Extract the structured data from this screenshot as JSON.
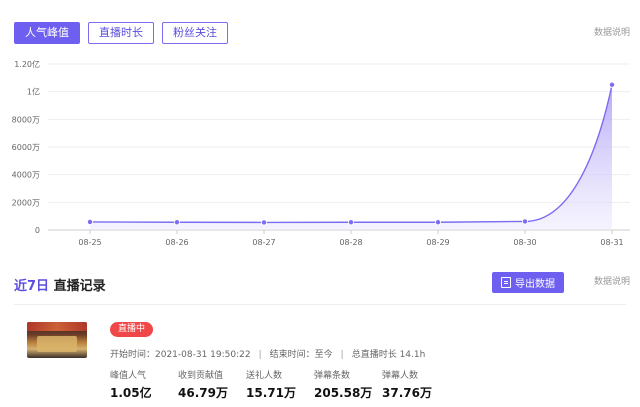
{
  "tabs": [
    {
      "label": "人气峰值",
      "active": true
    },
    {
      "label": "直播时长",
      "active": false
    },
    {
      "label": "粉丝关注",
      "active": false
    }
  ],
  "data_note": "数据说明",
  "chart_data": {
    "type": "area",
    "x": [
      "08-25",
      "08-26",
      "08-27",
      "08-28",
      "08-29",
      "08-30",
      "08-31"
    ],
    "y_ticks": [
      "0",
      "2000万",
      "4000万",
      "6000万",
      "8000万",
      "1亿",
      "1.20亿"
    ],
    "ylim": [
      0,
      120000000
    ],
    "series": [
      {
        "values": [
          5800000,
          5600000,
          5500000,
          5600000,
          5600000,
          6200000,
          105000000
        ]
      }
    ],
    "grid": true,
    "colors": {
      "line": "#7b6cf0",
      "fill_top": "#a99bf6",
      "fill_bottom": "#ece8fd",
      "grid": "#eeeeee"
    }
  },
  "records": {
    "title_accent": "近7日",
    "title_rest": " 直播记录",
    "export_label": "导出数据",
    "data_note": "数据说明",
    "item": {
      "status": "直播中",
      "start": "开始时间：2021-08-31 19:50:22",
      "end": "结束时间：至今",
      "duration": "总直播时长 14.1h",
      "sep": "|",
      "stats": [
        {
          "label": "峰值人气",
          "value": "1.05亿"
        },
        {
          "label": "收到贡献值",
          "value": "46.79万"
        },
        {
          "label": "送礼人数",
          "value": "15.71万"
        },
        {
          "label": "弹幕条数",
          "value": "205.58万"
        },
        {
          "label": "弹幕人数",
          "value": "37.76万"
        }
      ]
    }
  }
}
